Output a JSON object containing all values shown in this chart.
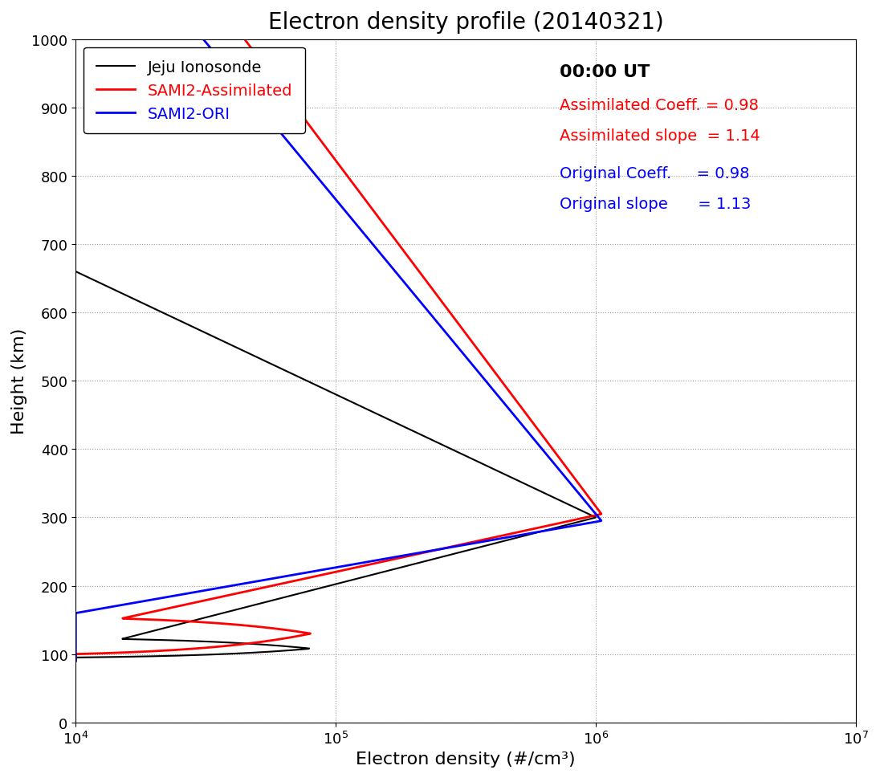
{
  "title": "Electron density profile (20140321)",
  "xlabel": "Electron density (#/cm³)",
  "ylabel": "Height (km)",
  "xlim_log": [
    4,
    7
  ],
  "ylim": [
    0,
    1000
  ],
  "time_label": "00:00 UT",
  "annotations_red": [
    "Assimilated Coeff. = 0.98",
    "Assimilated slope  = 1.14"
  ],
  "annotations_blue": [
    "Original Coeff.     = 0.98",
    "Original slope      = 1.13"
  ],
  "legend_labels": [
    "Jeju Ionosonde",
    "SAMI2-Assimilated",
    "SAMI2-ORI"
  ],
  "legend_colors": [
    "black",
    "red",
    "blue"
  ],
  "background_color": "white",
  "title_fontsize": 20,
  "label_fontsize": 16,
  "legend_fontsize": 14,
  "annotation_fontsize": 14
}
